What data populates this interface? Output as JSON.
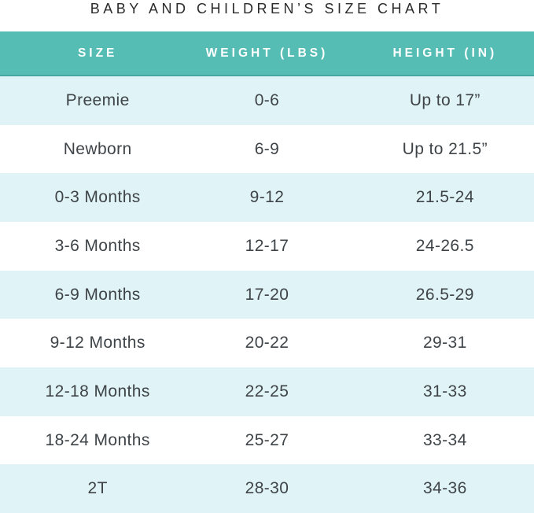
{
  "chart_data": {
    "type": "table",
    "title": "BABY AND CHILDREN’S SIZE CHART",
    "columns": [
      "SIZE",
      "WEIGHT (LBS)",
      "HEIGHT (IN)"
    ],
    "rows": [
      [
        "Preemie",
        "0-6",
        "Up to 17”"
      ],
      [
        "Newborn",
        "6-9",
        "Up to 21.5”"
      ],
      [
        "0-3 Months",
        "9-12",
        "21.5-24"
      ],
      [
        "3-6 Months",
        "12-17",
        "24-26.5"
      ],
      [
        "6-9 Months",
        "17-20",
        "26.5-29"
      ],
      [
        "9-12 Months",
        "20-22",
        "29-31"
      ],
      [
        "12-18 Months",
        "22-25",
        "31-33"
      ],
      [
        "18-24 Months",
        "25-27",
        "33-34"
      ],
      [
        "2T",
        "28-30",
        "34-36"
      ]
    ]
  },
  "colors": {
    "header_bg": "#55bdb4",
    "header_border": "#46a8a0",
    "row_alt_bg": "#e0f3f6",
    "row_bg": "#ffffff",
    "header_text": "#ffffff",
    "cell_text": "#3e4448",
    "title_text": "#2b2b2b"
  }
}
